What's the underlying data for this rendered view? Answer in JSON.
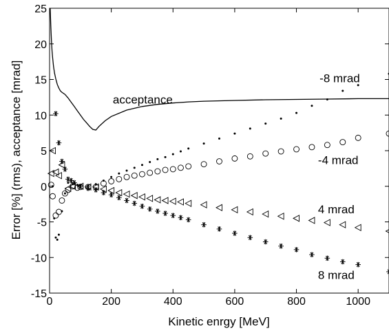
{
  "chart_data": {
    "type": "scatter",
    "title": "",
    "xlabel": "Kinetic enrgy [MeV]",
    "ylabel": "Error [%] (rms), acceptance [mrad]",
    "xlim": [
      0,
      1100
    ],
    "ylim": [
      -15,
      25
    ],
    "xticks": [
      0,
      200,
      400,
      600,
      800,
      1000
    ],
    "yticks": [
      -15,
      -10,
      -5,
      0,
      5,
      10,
      15,
      20,
      25
    ],
    "grid": false,
    "legend": "none",
    "annotations": [
      {
        "text": "-8 mrad",
        "x": 875,
        "y": 14.6
      },
      {
        "text": "acceptance",
        "x": 205,
        "y": 11.6
      },
      {
        "text": "-4 mrad",
        "x": 870,
        "y": 3.1
      },
      {
        "text": "4 mrad",
        "x": 870,
        "y": -3.8
      },
      {
        "text": "8 mrad",
        "x": 870,
        "y": -13.0
      }
    ],
    "series": [
      {
        "marker": "line",
        "x": [
          2,
          4,
          6,
          8,
          10,
          13,
          16,
          20,
          25,
          30,
          35,
          40,
          50,
          60,
          70,
          80,
          90,
          100,
          110,
          120,
          130,
          140,
          150,
          160,
          180,
          200,
          250,
          300,
          350,
          400,
          450,
          500,
          600,
          700,
          800,
          900,
          1000,
          1100
        ],
        "y": [
          25,
          22.5,
          20.5,
          19,
          18,
          16.8,
          15.9,
          15.1,
          14.3,
          13.8,
          13.4,
          13.2,
          12.9,
          12.4,
          11.8,
          11.2,
          10.6,
          10.0,
          9.4,
          8.9,
          8.4,
          8.0,
          7.9,
          8.4,
          9.2,
          9.8,
          10.7,
          11.2,
          11.5,
          11.7,
          11.85,
          11.95,
          12.05,
          12.15,
          12.2,
          12.25,
          12.3,
          12.3
        ]
      },
      {
        "marker": "dot",
        "x": [
          10,
          15,
          20,
          25,
          30,
          40,
          50,
          60,
          75,
          90,
          100,
          125,
          150,
          175,
          200,
          225,
          250,
          275,
          300,
          325,
          350,
          375,
          400,
          425,
          450,
          500,
          550,
          600,
          650,
          700,
          750,
          800,
          850,
          900,
          950,
          1000,
          1100
        ],
        "y": [
          0,
          -4.5,
          -7.2,
          -7.5,
          -6.8,
          -3.5,
          -1.0,
          0.5,
          0.3,
          0.2,
          0.1,
          0.1,
          0.3,
          0.8,
          1.3,
          1.8,
          2.2,
          2.6,
          3.0,
          3.4,
          3.8,
          4.1,
          4.5,
          4.9,
          5.3,
          6.0,
          6.7,
          7.4,
          8.1,
          8.8,
          9.5,
          10.3,
          11.3,
          12.2,
          13.4,
          14.2,
          15.8
        ]
      },
      {
        "marker": "circle",
        "x": [
          5,
          10,
          20,
          30,
          40,
          50,
          60,
          75,
          90,
          100,
          125,
          150,
          175,
          200,
          225,
          250,
          275,
          300,
          325,
          350,
          375,
          400,
          425,
          450,
          500,
          550,
          600,
          650,
          700,
          750,
          800,
          850,
          900,
          950,
          1000,
          1100
        ],
        "y": [
          0.2,
          -1.4,
          -4.1,
          -3.6,
          -2.0,
          -1.0,
          -0.5,
          0.0,
          -0.2,
          -0.1,
          -0.1,
          -0.1,
          0.4,
          0.7,
          1.0,
          1.3,
          1.5,
          1.7,
          1.9,
          2.1,
          2.3,
          2.4,
          2.6,
          2.8,
          3.1,
          3.5,
          3.9,
          4.2,
          4.6,
          4.9,
          5.2,
          5.5,
          5.8,
          6.2,
          6.8,
          7.4
        ]
      },
      {
        "marker": "triangle-left",
        "x": [
          5,
          10,
          20,
          30,
          40,
          60,
          75,
          100,
          125,
          150,
          175,
          200,
          225,
          250,
          275,
          300,
          325,
          350,
          375,
          400,
          425,
          450,
          500,
          550,
          600,
          650,
          700,
          750,
          800,
          850,
          900,
          950,
          1000,
          1100
        ],
        "y": [
          1.8,
          5.0,
          2.0,
          1.5,
          3.0,
          -0.3,
          0.0,
          0.0,
          -0.1,
          -0.1,
          -0.4,
          -0.6,
          -0.9,
          -1.1,
          -1.3,
          -1.5,
          -1.7,
          -1.9,
          -2.0,
          -2.1,
          -2.2,
          -2.4,
          -2.6,
          -3.0,
          -3.3,
          -3.6,
          -3.9,
          -4.2,
          -4.5,
          -4.8,
          -5.1,
          -5.4,
          -5.8,
          -6.3
        ]
      },
      {
        "marker": "asterisk",
        "x": [
          20,
          30,
          40,
          50,
          60,
          70,
          80,
          100,
          125,
          150,
          175,
          200,
          225,
          250,
          275,
          300,
          325,
          350,
          375,
          400,
          425,
          450,
          500,
          550,
          600,
          650,
          700,
          750,
          800,
          850,
          900,
          950,
          1000,
          1100
        ],
        "y": [
          10.2,
          6.1,
          3.5,
          2.4,
          1.0,
          0.8,
          0.5,
          0.0,
          -0.3,
          -0.5,
          -0.9,
          -1.2,
          -1.6,
          -2.0,
          -2.4,
          -2.8,
          -3.2,
          -3.5,
          -3.8,
          -4.1,
          -4.4,
          -4.7,
          -5.4,
          -6.0,
          -6.6,
          -7.2,
          -7.8,
          -8.4,
          -8.9,
          -9.6,
          -10.1,
          -10.6,
          -11.0,
          -12.0
        ]
      }
    ]
  }
}
